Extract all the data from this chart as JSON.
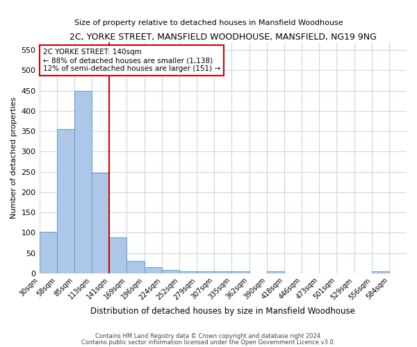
{
  "title": "2C, YORKE STREET, MANSFIELD WOODHOUSE, MANSFIELD, NG19 9NG",
  "subtitle": "Size of property relative to detached houses in Mansfield Woodhouse",
  "xlabel": "Distribution of detached houses by size in Mansfield Woodhouse",
  "ylabel": "Number of detached properties",
  "footnote1": "Contains HM Land Registry data © Crown copyright and database right 2024.",
  "footnote2": "Contains public sector information licensed under the Open Government Licence v3.0.",
  "annotation_title": "2C YORKE STREET: 140sqm",
  "annotation_line1": "← 88% of detached houses are smaller (1,138)",
  "annotation_line2": "12% of semi-detached houses are larger (151) →",
  "bar_labels": [
    "30sqm",
    "58sqm",
    "85sqm",
    "113sqm",
    "141sqm",
    "169sqm",
    "196sqm",
    "224sqm",
    "252sqm",
    "279sqm",
    "307sqm",
    "335sqm",
    "362sqm",
    "390sqm",
    "418sqm",
    "446sqm",
    "473sqm",
    "501sqm",
    "529sqm",
    "556sqm",
    "584sqm"
  ],
  "bar_values": [
    103,
    355,
    450,
    247,
    89,
    30,
    15,
    9,
    5,
    5,
    5,
    4,
    0,
    5,
    0,
    0,
    0,
    0,
    0,
    5,
    0
  ],
  "bar_color": "#aec6e8",
  "bar_edge_color": "#5a9fd4",
  "red_line_index": 4,
  "red_line_color": "#cc0000",
  "annotation_box_color": "#cc0000",
  "background_color": "#ffffff",
  "grid_color": "#c8d8e8",
  "ylim": [
    0,
    570
  ],
  "yticks": [
    0,
    50,
    100,
    150,
    200,
    250,
    300,
    350,
    400,
    450,
    500,
    550
  ]
}
